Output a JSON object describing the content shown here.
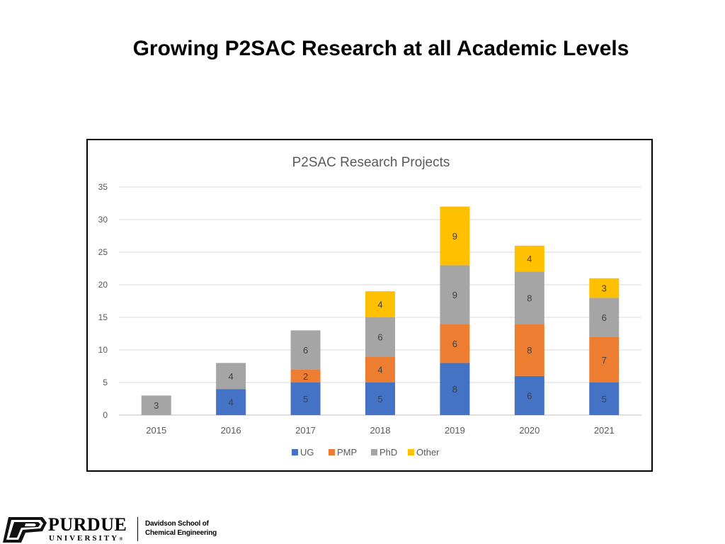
{
  "slide": {
    "title": "Growing P2SAC Research at all Academic Levels"
  },
  "footer": {
    "logo_letter": "P",
    "university_name": "PURDUE",
    "university_sub": "UNIVERSITY",
    "registered_mark": "®",
    "department_line1": "Davidson School of",
    "department_line2": "Chemical Engineering"
  },
  "chart_data": {
    "type": "bar",
    "stacked": true,
    "title": "P2SAC Research Projects",
    "xlabel": "",
    "ylabel": "",
    "categories": [
      "2015",
      "2016",
      "2017",
      "2018",
      "2019",
      "2020",
      "2021"
    ],
    "series": [
      {
        "name": "UG",
        "color": "#4472C4",
        "values": [
          0,
          4,
          5,
          5,
          8,
          6,
          5
        ]
      },
      {
        "name": "PMP",
        "color": "#ED7D31",
        "values": [
          0,
          0,
          2,
          4,
          6,
          8,
          7
        ]
      },
      {
        "name": "PhD",
        "color": "#A5A5A5",
        "values": [
          3,
          4,
          6,
          6,
          9,
          8,
          6
        ]
      },
      {
        "name": "Other",
        "color": "#FFC000",
        "values": [
          0,
          0,
          0,
          4,
          9,
          4,
          3
        ]
      }
    ],
    "ylim": [
      0,
      35
    ],
    "yticks": [
      0,
      5,
      10,
      15,
      20,
      25,
      30,
      35
    ],
    "grid": true,
    "legend": "bottom"
  }
}
